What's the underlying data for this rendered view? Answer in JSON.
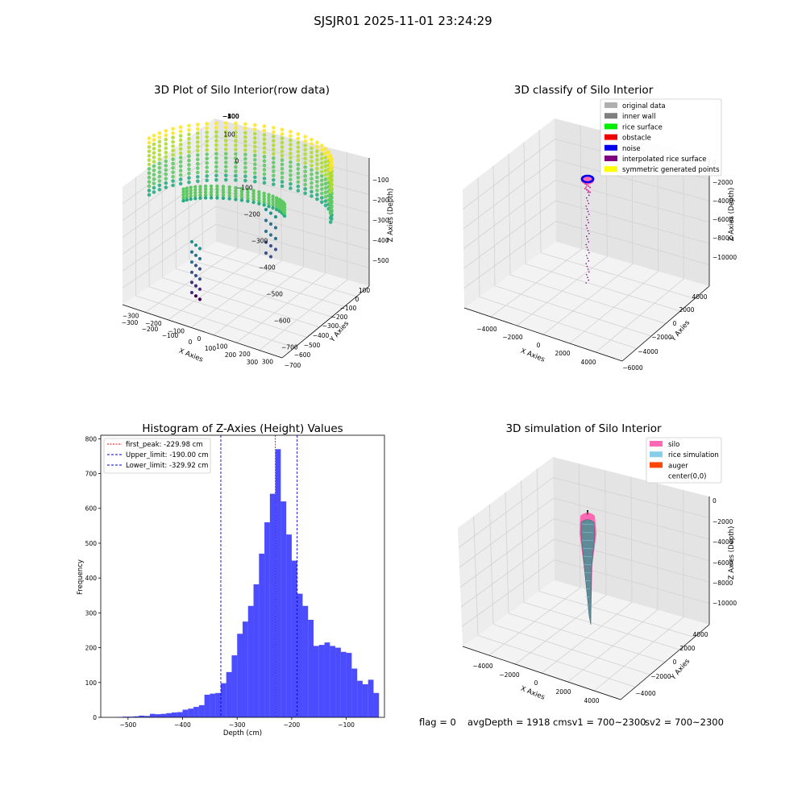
{
  "figure": {
    "title": "SJSJR01 2025-11-01 23:24:29"
  },
  "status": {
    "flag": "flag = 0",
    "avg_depth": "avgDepth = 1918 cmsv1 = 700~2300",
    "sv2": "sv2 = 700~2300"
  },
  "chart_data": [
    {
      "type": "scatter",
      "subtype": "3d",
      "title": "3D Plot of Silo Interior(row data)",
      "xlabel": "X Axies",
      "ylabel": "Y Axies",
      "zlabel": "Z Axies (Depth)",
      "xticks": [
        "−300",
        "−200",
        "−100",
        "0",
        "100",
        "200",
        "300"
      ],
      "yticks": [
        "100",
        "0",
        "−100",
        "−200",
        "−300",
        "−400",
        "−500",
        "−600",
        "−700"
      ],
      "zticks": [
        "−100",
        "−200",
        "−300",
        "−400",
        "−500"
      ],
      "xlim": [
        -330,
        330
      ],
      "ylim": [
        -700,
        150
      ],
      "zlim": [
        -560,
        -40
      ],
      "colormap": "viridis"
    },
    {
      "type": "scatter",
      "subtype": "3d",
      "title": "3D classify of Silo Interior",
      "xlabel": "X Axies",
      "ylabel": "Y Axies",
      "zlabel": "Z Axies (Depth)",
      "xticks": [
        "−4000",
        "−2000",
        "0",
        "2000",
        "4000"
      ],
      "yticks": [
        "4000",
        "2000",
        "0",
        "−2000",
        "−4000",
        "−6000"
      ],
      "zticks": [
        "0",
        "−2000",
        "−4000",
        "−6000",
        "−8000",
        "−10000"
      ],
      "legend": {
        "placement": "top-right",
        "entries": [
          {
            "label": "original data",
            "color": "#b0b0b0"
          },
          {
            "label": "inner wall",
            "color": "#808080"
          },
          {
            "label": "rice surface",
            "color": "#00ee00"
          },
          {
            "label": "obstacle",
            "color": "#ee0000"
          },
          {
            "label": "noise",
            "color": "#0000ee"
          },
          {
            "label": "interpolated rice surface",
            "color": "#800080"
          },
          {
            "label": "symmetric generated points",
            "color": "#ffff00"
          }
        ]
      }
    },
    {
      "type": "bar",
      "subtype": "histogram",
      "title": "Histogram of Z-Axies (Height) Values",
      "xlabel": "Depth (cm)",
      "ylabel": "Frequency",
      "xlim": [
        -550,
        -30
      ],
      "ylim": [
        0,
        810
      ],
      "xticks": [
        "−500",
        "−400",
        "−300",
        "−200",
        "−100"
      ],
      "yticks": [
        "0",
        "100",
        "200",
        "300",
        "400",
        "500",
        "600",
        "700",
        "800"
      ],
      "bar_color": "#0000ff",
      "bin_width": 10,
      "x": [
        -515,
        -505,
        -495,
        -485,
        -475,
        -465,
        -455,
        -445,
        -435,
        -425,
        -415,
        -405,
        -395,
        -385,
        -375,
        -365,
        -355,
        -345,
        -335,
        -325,
        -315,
        -305,
        -295,
        -285,
        -275,
        -265,
        -255,
        -245,
        -235,
        -225,
        -215,
        -205,
        -195,
        -185,
        -175,
        -165,
        -155,
        -145,
        -135,
        -125,
        -115,
        -105,
        -95,
        -85,
        -75,
        -65,
        -55,
        -45,
        -35
      ],
      "values": [
        1,
        2,
        2,
        3,
        5,
        4,
        10,
        9,
        10,
        12,
        14,
        15,
        22,
        25,
        30,
        35,
        65,
        68,
        70,
        98,
        130,
        178,
        240,
        275,
        320,
        382,
        470,
        560,
        642,
        770,
        620,
        525,
        450,
        355,
        320,
        280,
        205,
        208,
        215,
        205,
        200,
        188,
        185,
        140,
        105,
        95,
        108,
        70,
        0
      ],
      "annotations": [
        {
          "label": "first_peak: -229.98 cm",
          "x": -229.98,
          "color": "#ff0000"
        },
        {
          "label": "Upper_limit: -190.00 cm",
          "x": -190.0,
          "color": "#0000cc"
        },
        {
          "label": "Lower_limit: -329.92 cm",
          "x": -329.92,
          "color": "#0000cc"
        }
      ],
      "legend": {
        "placement": "top-left"
      }
    },
    {
      "type": "area",
      "subtype": "3d-surface",
      "title": "3D simulation of Silo Interior",
      "xlabel": "X Axies",
      "ylabel": "Y Axies",
      "zlabel": "Z Axies (Depth)",
      "xticks": [
        "−4000",
        "−2000",
        "0",
        "2000",
        "4000"
      ],
      "yticks": [
        "4000",
        "2000",
        "0",
        "−2000",
        "−4000"
      ],
      "zticks": [
        "0",
        "−2000",
        "−4000",
        "−6000",
        "−8000",
        "−10000"
      ],
      "legend": {
        "placement": "top-right",
        "entries": [
          {
            "label": "silo",
            "color": "#ff69b4"
          },
          {
            "label": "rice simulation",
            "color": "#87ceeb"
          },
          {
            "label": "auger",
            "color": "#ff4500"
          },
          {
            "label": "center(0,0)",
            "color": "#ffffff"
          }
        ]
      }
    }
  ]
}
